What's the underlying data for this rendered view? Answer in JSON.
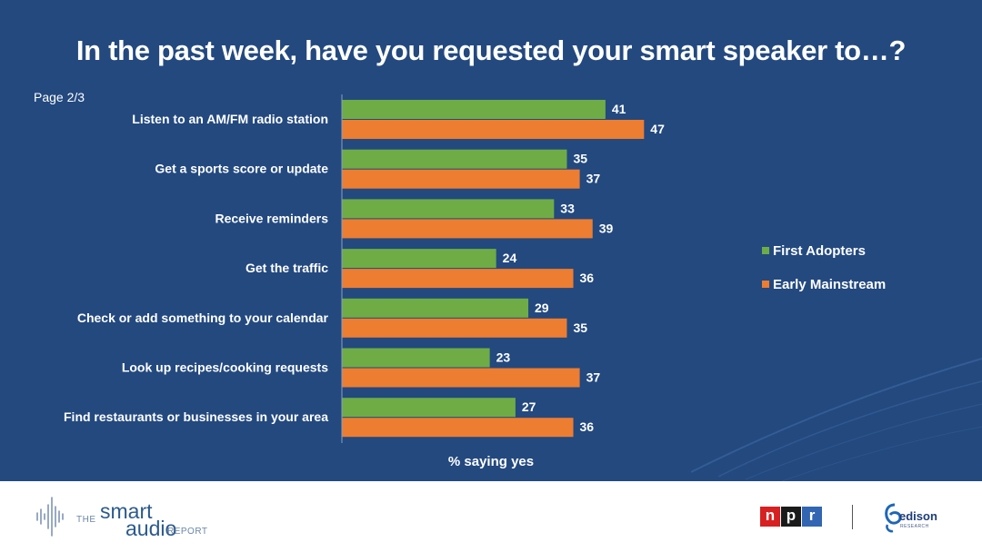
{
  "title": "In the past week, have you requested your smart speaker to…?",
  "page_label": "Page 2/3",
  "colors": {
    "background": "#23497f",
    "first_adopters": "#6fac46",
    "early_mainstream": "#ed7d31",
    "text": "#ffffff"
  },
  "chart_data": {
    "type": "bar",
    "orientation": "horizontal",
    "title": "In the past week, have you requested your smart speaker to…?",
    "xlabel": "% saying yes",
    "ylabel": "",
    "xlim": [
      0,
      100
    ],
    "categories": [
      "Listen to an AM/FM radio station",
      "Get a sports score or update",
      "Receive reminders",
      "Get the traffic",
      "Check or add something to your calendar",
      "Look up recipes/cooking requests",
      "Find restaurants or businesses in your area"
    ],
    "series": [
      {
        "name": "First Adopters",
        "color": "#6fac46",
        "values": [
          41,
          35,
          33,
          24,
          29,
          23,
          27
        ]
      },
      {
        "name": "Early Mainstream",
        "color": "#ed7d31",
        "values": [
          47,
          37,
          39,
          36,
          35,
          37,
          36
        ]
      }
    ],
    "legend_position": "right"
  },
  "footer": {
    "brand": {
      "the": "THE",
      "smart": "smart",
      "audio": "audio",
      "report": "REPORT"
    },
    "npr": [
      "n",
      "p",
      "r"
    ],
    "npr_colors": [
      "#d62021",
      "#1a1a1a",
      "#3266b2"
    ],
    "edison": {
      "name": "edison",
      "sub": "RESEARCH"
    }
  }
}
